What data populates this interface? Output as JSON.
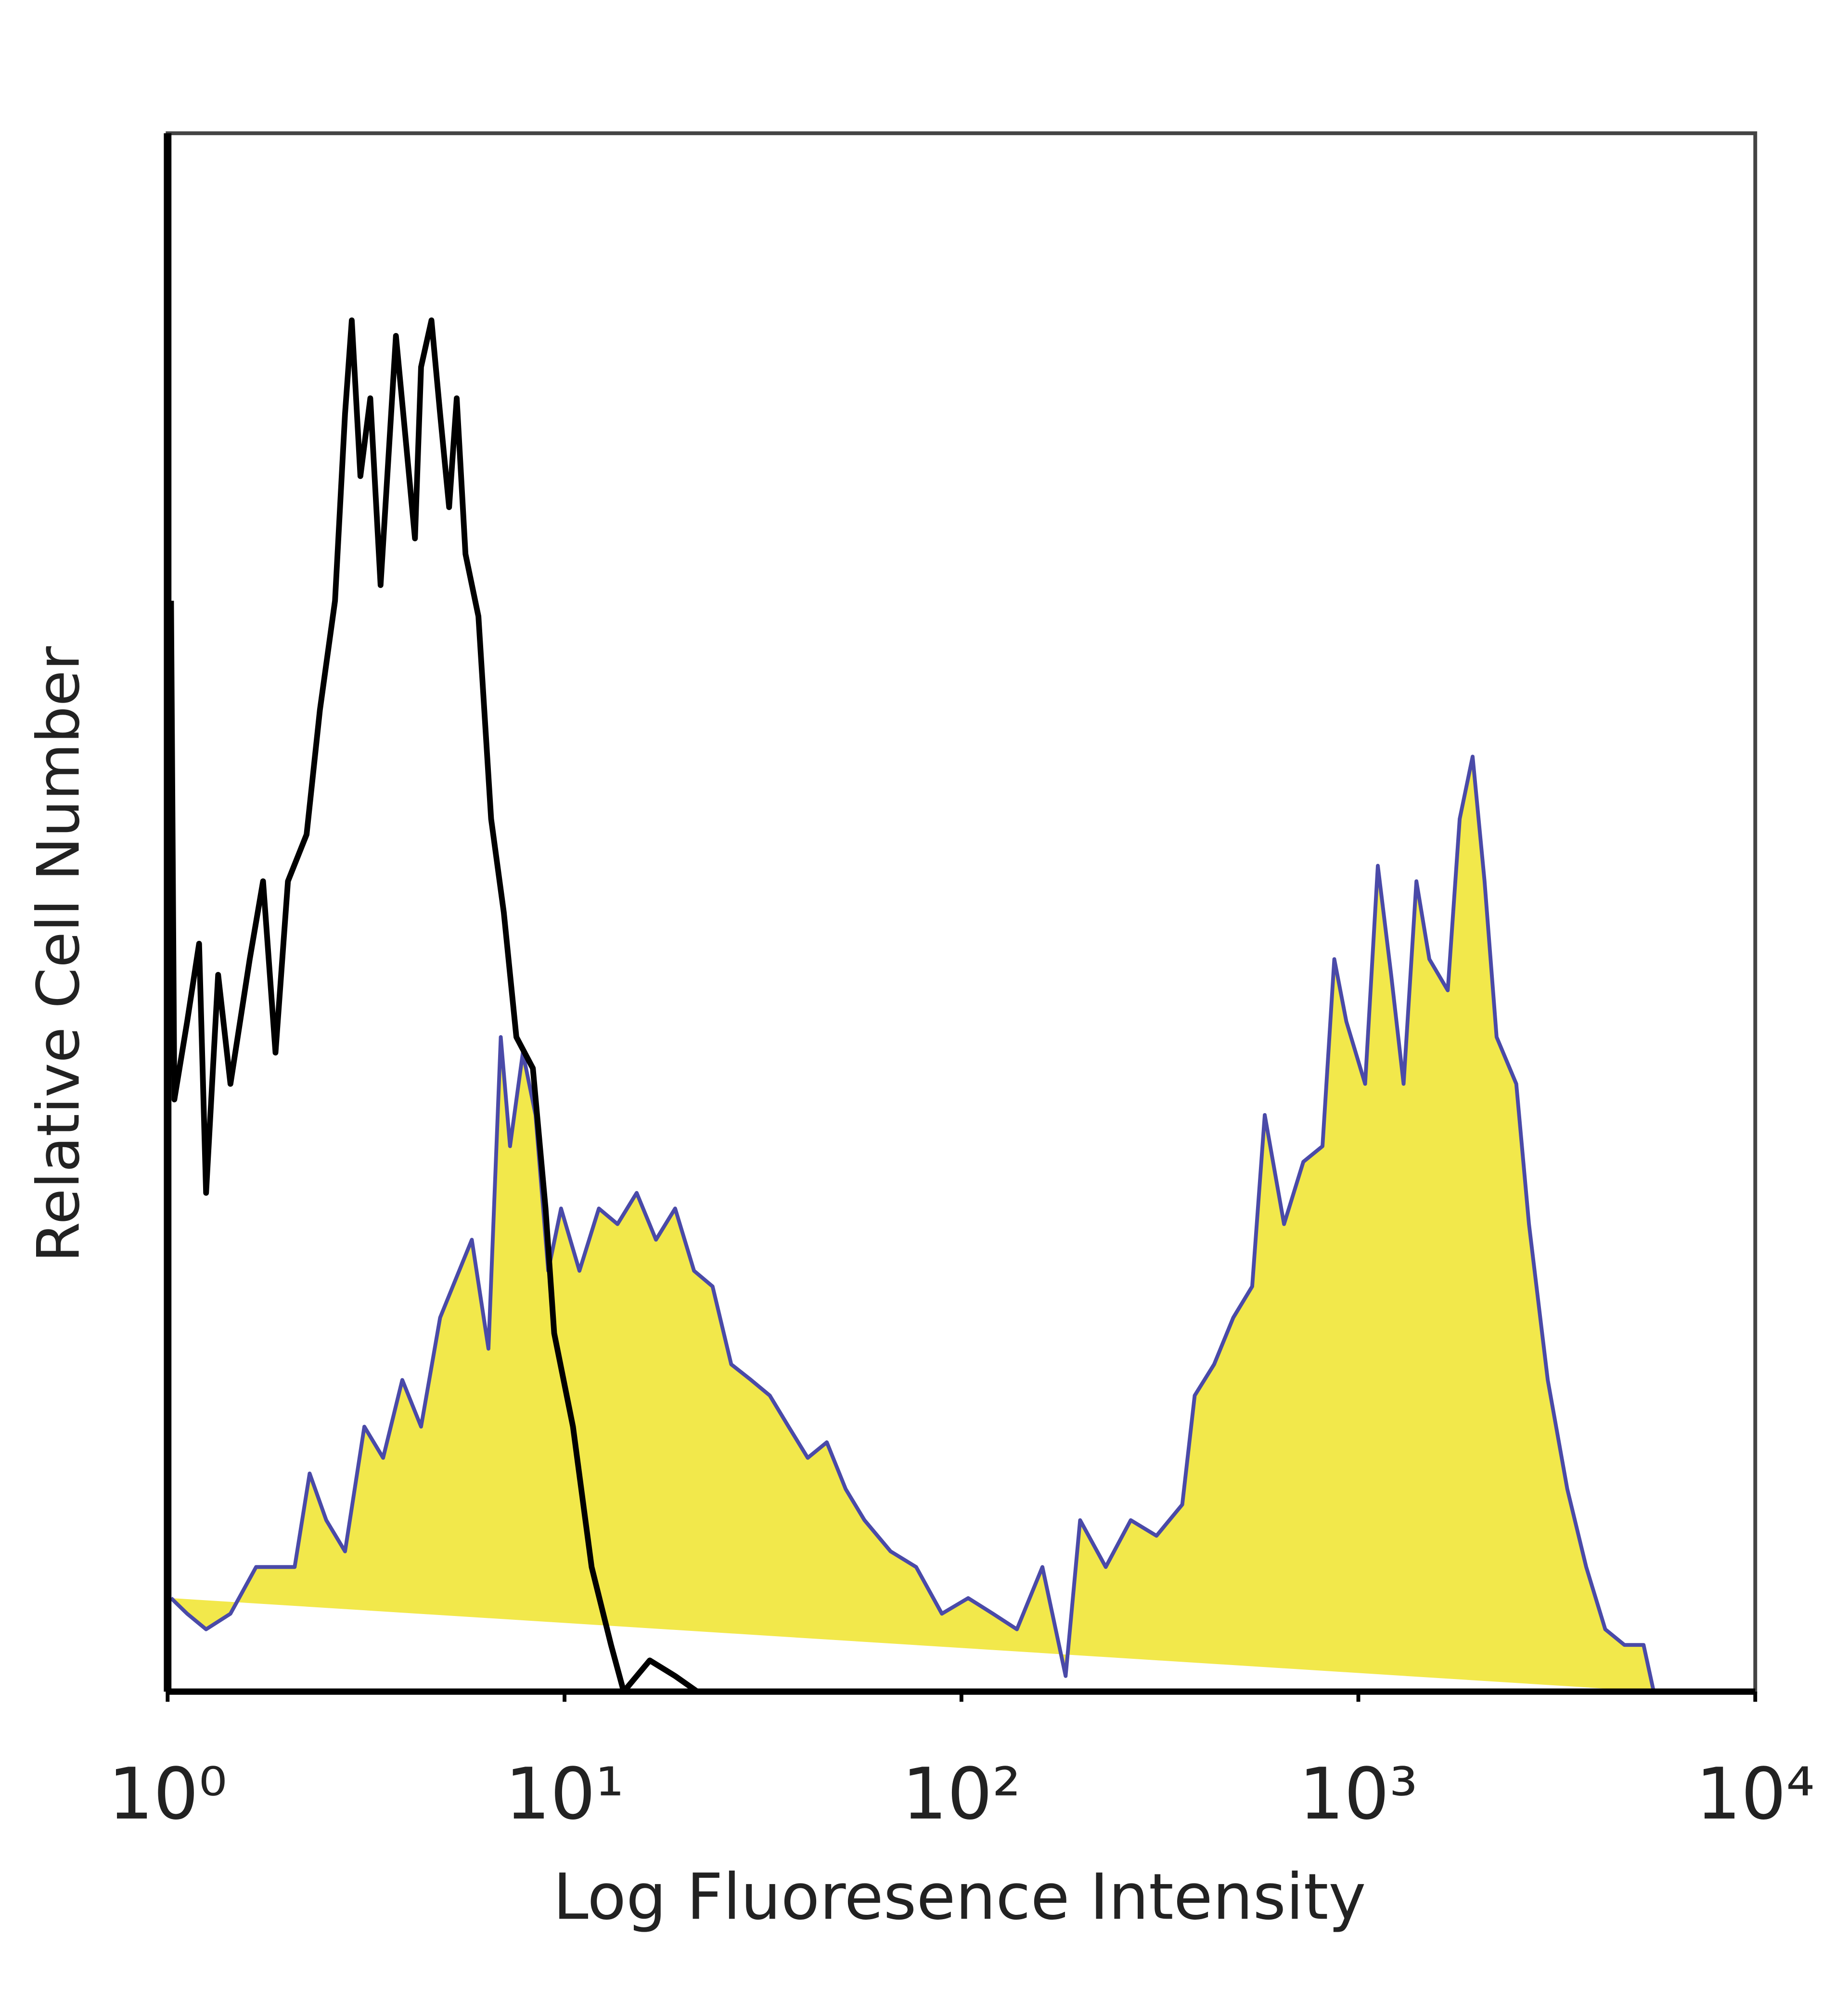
{
  "chart_data": {
    "type": "histogram-line",
    "xlabel": "Log Fluoresence Intensity",
    "ylabel": "Relative Cell Number",
    "xscale": "log",
    "xlim": [
      1,
      10000
    ],
    "xticks": [
      {
        "value": 1,
        "label": "10⁰"
      },
      {
        "value": 10,
        "label": "10¹"
      },
      {
        "value": 100,
        "label": "10²"
      },
      {
        "value": 1000,
        "label": "10³"
      },
      {
        "value": 10000,
        "label": "10⁴"
      }
    ],
    "ylim": [
      0,
      100
    ],
    "grid": false,
    "series": [
      {
        "color": "#f2e84b",
        "edgecolor": "#4a4aa8",
        "filled": true,
        "x": [
          1.02,
          1.12,
          1.25,
          1.44,
          1.67,
          1.87,
          2.09,
          2.28,
          2.51,
          2.8,
          3.13,
          3.49,
          3.9,
          4.35,
          4.86,
          5.23,
          5.84,
          6.43,
          6.91,
          7.29,
          7.85,
          8.45,
          9.1,
          9.8,
          10.9,
          12.2,
          13.6,
          15.2,
          17.0,
          19.0,
          21.2,
          23.6,
          26.3,
          29.5,
          32.9,
          36.7,
          41.0,
          45.8,
          51.1,
          57.0,
          66.3,
          76.9,
          89.3,
          104,
          120,
          138,
          160,
          183,
          199,
          231,
          267,
          310,
          360,
          387,
          433,
          484,
          540,
          581,
          650,
          727,
          812,
          870,
          933,
          1040,
          1120,
          1210,
          1300,
          1400,
          1510,
          1680,
          1800,
          1940,
          2080,
          2230,
          2500,
          2690,
          3000,
          3360,
          3750,
          4190,
          4680,
          5230,
          5550
        ],
        "values": [
          6,
          5,
          4,
          5,
          8,
          8,
          8,
          14,
          11,
          9,
          17,
          15,
          20,
          17,
          24,
          26,
          29,
          22,
          42,
          35,
          41,
          37,
          27,
          31,
          27,
          31,
          30,
          32,
          29,
          31,
          27,
          26,
          21,
          20,
          19,
          17,
          15,
          16,
          13,
          11,
          9,
          8,
          5,
          6,
          5,
          4,
          8,
          1,
          11,
          8,
          11,
          10,
          12,
          19,
          21,
          24,
          26,
          37,
          30,
          34,
          35,
          47,
          43,
          39,
          53,
          46,
          39,
          52,
          47,
          45,
          56,
          60,
          52,
          42,
          39,
          30,
          20,
          13,
          8,
          4,
          3,
          3,
          0
        ]
      },
      {
        "color": "#000000",
        "filled": false,
        "x": [
          1.02,
          1.04,
          1.12,
          1.2,
          1.25,
          1.34,
          1.44,
          1.61,
          1.74,
          1.87,
          2.01,
          2.24,
          2.42,
          2.64,
          2.8,
          2.91,
          3.06,
          3.24,
          3.44,
          3.76,
          3.99,
          4.2,
          4.35,
          4.62,
          4.86,
          5.12,
          5.35,
          5.63,
          6.07,
          6.53,
          7.03,
          7.56,
          8.32,
          8.96,
          9.42,
          10.5,
          11.7,
          13.1,
          14.1,
          16.4,
          19.0,
          21.6
        ],
        "values": [
          70,
          38,
          43,
          48,
          32,
          46,
          39,
          47,
          52,
          41,
          52,
          55,
          63,
          70,
          82,
          88,
          78,
          83,
          71,
          87,
          80,
          74,
          85,
          88,
          82,
          76,
          83,
          73,
          69,
          56,
          50,
          42,
          40,
          31,
          23,
          17,
          8,
          3,
          0,
          2,
          1,
          0
        ]
      }
    ]
  }
}
